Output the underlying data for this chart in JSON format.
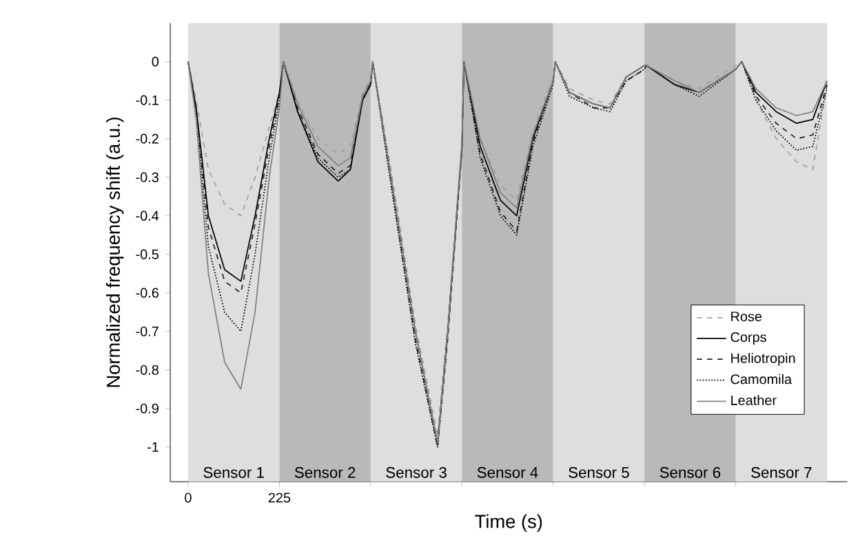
{
  "chart_data": {
    "type": "line",
    "xlabel": "Time (s)",
    "ylabel": "Normalized frequency shift  (a.u.)",
    "x": [
      0,
      20,
      50,
      90,
      130,
      165,
      200,
      225,
      235,
      270,
      320,
      370,
      400,
      430,
      450,
      455,
      500,
      560,
      615,
      640,
      675,
      680,
      720,
      770,
      810,
      850,
      900,
      905,
      940,
      1000,
      1040,
      1080,
      1125,
      1130,
      1200,
      1260,
      1350,
      1365,
      1400,
      1450,
      1500,
      1540,
      1575
    ],
    "series": [
      {
        "name": "Rose",
        "color": "#a0a0a0",
        "line_style": "dashed",
        "values": [
          0,
          -0.1,
          -0.28,
          -0.37,
          -0.4,
          -0.3,
          -0.17,
          -0.08,
          0,
          -0.1,
          -0.2,
          -0.24,
          -0.22,
          -0.08,
          -0.04,
          0,
          -0.28,
          -0.68,
          -0.97,
          -0.68,
          -0.21,
          0,
          -0.2,
          -0.32,
          -0.36,
          -0.18,
          -0.04,
          0,
          -0.07,
          -0.1,
          -0.11,
          -0.04,
          -0.01,
          -0.01,
          -0.05,
          -0.07,
          -0.01,
          0,
          -0.1,
          -0.2,
          -0.26,
          -0.28,
          -0.06
        ]
      },
      {
        "name": "Corps",
        "color": "#000000",
        "line_style": "solid",
        "values": [
          0,
          -0.12,
          -0.4,
          -0.54,
          -0.57,
          -0.4,
          -0.2,
          -0.08,
          0,
          -0.13,
          -0.26,
          -0.31,
          -0.28,
          -0.1,
          -0.06,
          0,
          -0.3,
          -0.7,
          -0.99,
          -0.7,
          -0.22,
          0,
          -0.22,
          -0.36,
          -0.4,
          -0.2,
          -0.05,
          0,
          -0.08,
          -0.11,
          -0.12,
          -0.04,
          -0.01,
          -0.01,
          -0.06,
          -0.08,
          -0.02,
          0,
          -0.08,
          -0.13,
          -0.16,
          -0.15,
          -0.05
        ]
      },
      {
        "name": "Heliotropin",
        "color": "#202020",
        "line_style": "dashed",
        "values": [
          0,
          -0.13,
          -0.43,
          -0.57,
          -0.6,
          -0.42,
          -0.22,
          -0.09,
          0,
          -0.12,
          -0.24,
          -0.29,
          -0.27,
          -0.1,
          -0.05,
          0,
          -0.31,
          -0.72,
          -1,
          -0.72,
          -0.23,
          0,
          -0.24,
          -0.39,
          -0.44,
          -0.21,
          -0.05,
          0,
          -0.08,
          -0.12,
          -0.12,
          -0.05,
          -0.02,
          -0.01,
          -0.06,
          -0.08,
          -0.02,
          0,
          -0.09,
          -0.16,
          -0.2,
          -0.19,
          -0.06
        ]
      },
      {
        "name": "Camomila",
        "color": "#000000",
        "line_style": "dotted",
        "values": [
          0,
          -0.14,
          -0.48,
          -0.65,
          -0.7,
          -0.5,
          -0.25,
          -0.1,
          0,
          -0.13,
          -0.25,
          -0.3,
          -0.28,
          -0.1,
          -0.06,
          0,
          -0.32,
          -0.73,
          -1,
          -0.71,
          -0.22,
          0,
          -0.25,
          -0.4,
          -0.45,
          -0.22,
          -0.06,
          0,
          -0.09,
          -0.12,
          -0.13,
          -0.05,
          -0.02,
          -0.01,
          -0.06,
          -0.09,
          -0.02,
          0,
          -0.1,
          -0.18,
          -0.23,
          -0.22,
          -0.07
        ]
      },
      {
        "name": "Leather",
        "color": "#808080",
        "line_style": "solid",
        "values": [
          0,
          -0.15,
          -0.55,
          -0.78,
          -0.85,
          -0.65,
          -0.3,
          -0.12,
          0,
          -0.11,
          -0.22,
          -0.27,
          -0.25,
          -0.09,
          -0.05,
          0,
          -0.3,
          -0.7,
          -0.99,
          -0.7,
          -0.21,
          0,
          -0.2,
          -0.34,
          -0.38,
          -0.19,
          -0.05,
          0,
          -0.08,
          -0.11,
          -0.12,
          -0.04,
          -0.01,
          -0.01,
          -0.05,
          -0.08,
          -0.02,
          0,
          -0.07,
          -0.12,
          -0.14,
          -0.13,
          -0.05
        ]
      }
    ],
    "bands": [
      {
        "axis": "x",
        "from": 0,
        "to": 225,
        "label": "Sensor 1",
        "color": "#dedede"
      },
      {
        "axis": "x",
        "from": 225,
        "to": 450,
        "label": "Sensor 2",
        "color": "#b9b9b9"
      },
      {
        "axis": "x",
        "from": 450,
        "to": 675,
        "label": "Sensor 3",
        "color": "#dedede"
      },
      {
        "axis": "x",
        "from": 675,
        "to": 900,
        "label": "Sensor 4",
        "color": "#b9b9b9"
      },
      {
        "axis": "x",
        "from": 900,
        "to": 1125,
        "label": "Sensor 5",
        "color": "#dedede"
      },
      {
        "axis": "x",
        "from": 1125,
        "to": 1350,
        "label": "Sensor 6",
        "color": "#b9b9b9"
      },
      {
        "axis": "x",
        "from": 1350,
        "to": 1575,
        "label": "Sensor 7",
        "color": "#dedede"
      }
    ],
    "xlim": [
      -44,
      1625
    ],
    "ylim": [
      -1.09,
      0.1
    ],
    "xticks": [
      0,
      225,
      {
        "value": 450,
        "label": null
      },
      {
        "value": 675,
        "label": null
      },
      {
        "value": 900,
        "label": null
      },
      {
        "value": 1125,
        "label": null
      },
      {
        "value": 1350,
        "label": null
      }
    ],
    "yticks": [
      0,
      -0.1,
      -0.2,
      -0.3,
      -0.4,
      -0.5,
      -0.6,
      -0.7,
      -0.8,
      -0.9,
      -1
    ],
    "legend": "bottom right",
    "grid": false
  }
}
